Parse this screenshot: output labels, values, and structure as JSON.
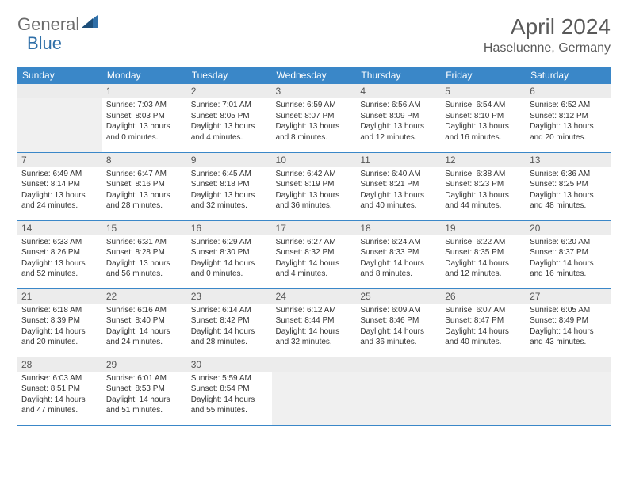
{
  "logo": {
    "general": "General",
    "blue": "Blue"
  },
  "header": {
    "month_title": "April 2024",
    "location": "Haseluenne, Germany"
  },
  "colors": {
    "header_bg": "#3a87c8",
    "header_fg": "#ffffff",
    "border": "#3a87c8",
    "empty_bg": "#f0f0f0",
    "daynum_bg": "#ececec"
  },
  "day_names": [
    "Sunday",
    "Monday",
    "Tuesday",
    "Wednesday",
    "Thursday",
    "Friday",
    "Saturday"
  ],
  "weeks": [
    [
      null,
      {
        "d": "1",
        "sr": "Sunrise: 7:03 AM",
        "ss": "Sunset: 8:03 PM",
        "dl1": "Daylight: 13 hours",
        "dl2": "and 0 minutes."
      },
      {
        "d": "2",
        "sr": "Sunrise: 7:01 AM",
        "ss": "Sunset: 8:05 PM",
        "dl1": "Daylight: 13 hours",
        "dl2": "and 4 minutes."
      },
      {
        "d": "3",
        "sr": "Sunrise: 6:59 AM",
        "ss": "Sunset: 8:07 PM",
        "dl1": "Daylight: 13 hours",
        "dl2": "and 8 minutes."
      },
      {
        "d": "4",
        "sr": "Sunrise: 6:56 AM",
        "ss": "Sunset: 8:09 PM",
        "dl1": "Daylight: 13 hours",
        "dl2": "and 12 minutes."
      },
      {
        "d": "5",
        "sr": "Sunrise: 6:54 AM",
        "ss": "Sunset: 8:10 PM",
        "dl1": "Daylight: 13 hours",
        "dl2": "and 16 minutes."
      },
      {
        "d": "6",
        "sr": "Sunrise: 6:52 AM",
        "ss": "Sunset: 8:12 PM",
        "dl1": "Daylight: 13 hours",
        "dl2": "and 20 minutes."
      }
    ],
    [
      {
        "d": "7",
        "sr": "Sunrise: 6:49 AM",
        "ss": "Sunset: 8:14 PM",
        "dl1": "Daylight: 13 hours",
        "dl2": "and 24 minutes."
      },
      {
        "d": "8",
        "sr": "Sunrise: 6:47 AM",
        "ss": "Sunset: 8:16 PM",
        "dl1": "Daylight: 13 hours",
        "dl2": "and 28 minutes."
      },
      {
        "d": "9",
        "sr": "Sunrise: 6:45 AM",
        "ss": "Sunset: 8:18 PM",
        "dl1": "Daylight: 13 hours",
        "dl2": "and 32 minutes."
      },
      {
        "d": "10",
        "sr": "Sunrise: 6:42 AM",
        "ss": "Sunset: 8:19 PM",
        "dl1": "Daylight: 13 hours",
        "dl2": "and 36 minutes."
      },
      {
        "d": "11",
        "sr": "Sunrise: 6:40 AM",
        "ss": "Sunset: 8:21 PM",
        "dl1": "Daylight: 13 hours",
        "dl2": "and 40 minutes."
      },
      {
        "d": "12",
        "sr": "Sunrise: 6:38 AM",
        "ss": "Sunset: 8:23 PM",
        "dl1": "Daylight: 13 hours",
        "dl2": "and 44 minutes."
      },
      {
        "d": "13",
        "sr": "Sunrise: 6:36 AM",
        "ss": "Sunset: 8:25 PM",
        "dl1": "Daylight: 13 hours",
        "dl2": "and 48 minutes."
      }
    ],
    [
      {
        "d": "14",
        "sr": "Sunrise: 6:33 AM",
        "ss": "Sunset: 8:26 PM",
        "dl1": "Daylight: 13 hours",
        "dl2": "and 52 minutes."
      },
      {
        "d": "15",
        "sr": "Sunrise: 6:31 AM",
        "ss": "Sunset: 8:28 PM",
        "dl1": "Daylight: 13 hours",
        "dl2": "and 56 minutes."
      },
      {
        "d": "16",
        "sr": "Sunrise: 6:29 AM",
        "ss": "Sunset: 8:30 PM",
        "dl1": "Daylight: 14 hours",
        "dl2": "and 0 minutes."
      },
      {
        "d": "17",
        "sr": "Sunrise: 6:27 AM",
        "ss": "Sunset: 8:32 PM",
        "dl1": "Daylight: 14 hours",
        "dl2": "and 4 minutes."
      },
      {
        "d": "18",
        "sr": "Sunrise: 6:24 AM",
        "ss": "Sunset: 8:33 PM",
        "dl1": "Daylight: 14 hours",
        "dl2": "and 8 minutes."
      },
      {
        "d": "19",
        "sr": "Sunrise: 6:22 AM",
        "ss": "Sunset: 8:35 PM",
        "dl1": "Daylight: 14 hours",
        "dl2": "and 12 minutes."
      },
      {
        "d": "20",
        "sr": "Sunrise: 6:20 AM",
        "ss": "Sunset: 8:37 PM",
        "dl1": "Daylight: 14 hours",
        "dl2": "and 16 minutes."
      }
    ],
    [
      {
        "d": "21",
        "sr": "Sunrise: 6:18 AM",
        "ss": "Sunset: 8:39 PM",
        "dl1": "Daylight: 14 hours",
        "dl2": "and 20 minutes."
      },
      {
        "d": "22",
        "sr": "Sunrise: 6:16 AM",
        "ss": "Sunset: 8:40 PM",
        "dl1": "Daylight: 14 hours",
        "dl2": "and 24 minutes."
      },
      {
        "d": "23",
        "sr": "Sunrise: 6:14 AM",
        "ss": "Sunset: 8:42 PM",
        "dl1": "Daylight: 14 hours",
        "dl2": "and 28 minutes."
      },
      {
        "d": "24",
        "sr": "Sunrise: 6:12 AM",
        "ss": "Sunset: 8:44 PM",
        "dl1": "Daylight: 14 hours",
        "dl2": "and 32 minutes."
      },
      {
        "d": "25",
        "sr": "Sunrise: 6:09 AM",
        "ss": "Sunset: 8:46 PM",
        "dl1": "Daylight: 14 hours",
        "dl2": "and 36 minutes."
      },
      {
        "d": "26",
        "sr": "Sunrise: 6:07 AM",
        "ss": "Sunset: 8:47 PM",
        "dl1": "Daylight: 14 hours",
        "dl2": "and 40 minutes."
      },
      {
        "d": "27",
        "sr": "Sunrise: 6:05 AM",
        "ss": "Sunset: 8:49 PM",
        "dl1": "Daylight: 14 hours",
        "dl2": "and 43 minutes."
      }
    ],
    [
      {
        "d": "28",
        "sr": "Sunrise: 6:03 AM",
        "ss": "Sunset: 8:51 PM",
        "dl1": "Daylight: 14 hours",
        "dl2": "and 47 minutes."
      },
      {
        "d": "29",
        "sr": "Sunrise: 6:01 AM",
        "ss": "Sunset: 8:53 PM",
        "dl1": "Daylight: 14 hours",
        "dl2": "and 51 minutes."
      },
      {
        "d": "30",
        "sr": "Sunrise: 5:59 AM",
        "ss": "Sunset: 8:54 PM",
        "dl1": "Daylight: 14 hours",
        "dl2": "and 55 minutes."
      },
      null,
      null,
      null,
      null
    ]
  ]
}
